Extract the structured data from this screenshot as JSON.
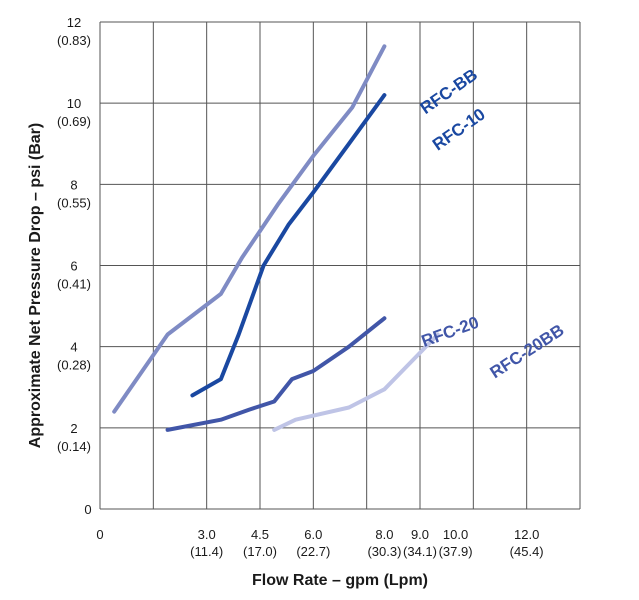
{
  "chart_data": {
    "type": "line",
    "xlabel": "Flow Rate – gpm (Lpm)",
    "ylabel": "Approximate Net Pressure Drop – psi (Bar)",
    "xlim": [
      0,
      13.5
    ],
    "ylim": [
      0,
      12
    ],
    "grid": true,
    "x_ticks": [
      {
        "value": 0,
        "label": "0",
        "sub": ""
      },
      {
        "value": 3.0,
        "label": "3.0",
        "sub": "(11.4)"
      },
      {
        "value": 4.5,
        "label": "4.5",
        "sub": "(17.0)"
      },
      {
        "value": 6.0,
        "label": "6.0",
        "sub": "(22.7)"
      },
      {
        "value": 8.0,
        "label": "8.0",
        "sub": "(30.3)"
      },
      {
        "value": 9.0,
        "label": "9.0",
        "sub": "(34.1)"
      },
      {
        "value": 10.0,
        "label": "10.0",
        "sub": "(37.9)"
      },
      {
        "value": 12.0,
        "label": "12.0",
        "sub": "(45.4)"
      }
    ],
    "x_tick_positions": [
      0,
      1.5,
      3.0,
      4.5,
      6.0,
      7.5,
      9.0,
      10.5,
      12.0,
      13.5
    ],
    "y_ticks": [
      {
        "value": 0,
        "label": "0",
        "sub": ""
      },
      {
        "value": 2,
        "label": "2",
        "sub": "(0.14)"
      },
      {
        "value": 4,
        "label": "4",
        "sub": "(0.28)"
      },
      {
        "value": 6,
        "label": "6",
        "sub": "(0.41)"
      },
      {
        "value": 8,
        "label": "8",
        "sub": "(0.55)"
      },
      {
        "value": 10,
        "label": "10",
        "sub": "(0.69)"
      },
      {
        "value": 12,
        "label": "12",
        "sub": "(0.83)"
      }
    ],
    "series": [
      {
        "name": "RFC-BB",
        "color": "#7f8bc4",
        "x": [
          0.4,
          1.9,
          3.4,
          4.0,
          5.0,
          6.0,
          7.1,
          8.0
        ],
        "y": [
          2.4,
          4.3,
          5.3,
          6.2,
          7.5,
          8.7,
          9.9,
          11.4
        ]
      },
      {
        "name": "RFC-10",
        "color": "#1a48a1",
        "x": [
          2.6,
          3.4,
          3.9,
          4.6,
          5.3,
          6.0,
          7.0,
          8.0
        ],
        "y": [
          2.8,
          3.2,
          4.3,
          6.0,
          7.0,
          7.8,
          9.0,
          10.2
        ]
      },
      {
        "name": "RFC-20",
        "color": "#4156a8",
        "x": [
          1.9,
          3.4,
          4.2,
          4.9,
          5.4,
          6.0,
          7.0,
          8.0
        ],
        "y": [
          1.95,
          2.2,
          2.45,
          2.65,
          3.2,
          3.4,
          4.0,
          4.7
        ]
      },
      {
        "name": "RFC-20BB",
        "color": "#bfc4e6",
        "x": [
          4.9,
          5.5,
          7.0,
          8.0,
          9.5
        ],
        "y": [
          1.95,
          2.2,
          2.5,
          2.95,
          4.3
        ]
      }
    ]
  }
}
